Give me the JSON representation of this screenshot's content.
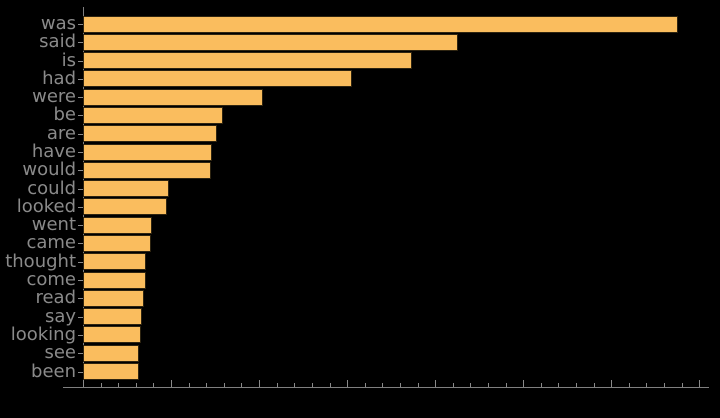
{
  "chart_data": {
    "type": "bar",
    "orientation": "horizontal",
    "title": "",
    "xlabel": "",
    "ylabel": "",
    "categories": [
      "was",
      "said",
      "is",
      "had",
      "were",
      "be",
      "are",
      "have",
      "would",
      "could",
      "looked",
      "went",
      "came",
      "thought",
      "come",
      "read",
      "say",
      "looking",
      "see",
      "been"
    ],
    "values": [
      676,
      426,
      374,
      306,
      205,
      159,
      152,
      146,
      145,
      98,
      95,
      78,
      77,
      72,
      72,
      69,
      67,
      66,
      64,
      64
    ],
    "xlim": [
      0,
      711
    ],
    "x_major_tick_step": 100,
    "x_minor_tick_step": 20,
    "x_tick_labels_visible": false,
    "grid": false,
    "legend": "none",
    "note": "x-axis tick values not labeled in image; values estimated in tick units (1 major tick = 100)",
    "colors": {
      "background": "#000000",
      "bar_fill": "#FABD5E",
      "bar_edge": "#2e2410",
      "axis": "#7f7f7f",
      "tick_label": "#8a8a8a"
    }
  }
}
